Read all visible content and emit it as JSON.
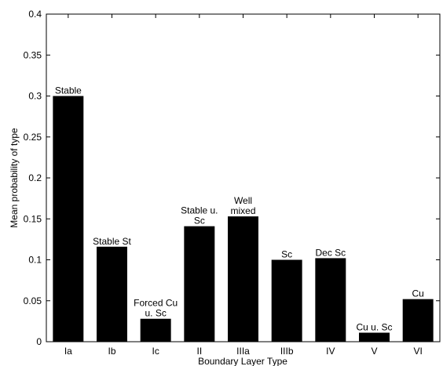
{
  "chart_data": {
    "type": "bar",
    "title": "",
    "xlabel": "Boundary Layer Type",
    "ylabel": "Mean probability of type",
    "ylim": [
      0,
      0.4
    ],
    "yticks": [
      0,
      0.05,
      0.1,
      0.15,
      0.2,
      0.25,
      0.3,
      0.35,
      0.4
    ],
    "ytick_labels": [
      "0",
      "0.05",
      "0.1",
      "0.15",
      "0.2",
      "0.25",
      "0.3",
      "0.35",
      "0.4"
    ],
    "categories": [
      "Ia",
      "Ib",
      "Ic",
      "II",
      "IIIa",
      "IIIb",
      "IV",
      "V",
      "VI"
    ],
    "values": [
      0.3,
      0.116,
      0.028,
      0.141,
      0.153,
      0.1,
      0.102,
      0.011,
      0.052
    ],
    "bar_labels": [
      [
        "Stable"
      ],
      [
        "Stable St"
      ],
      [
        "Forced Cu",
        "u. Sc"
      ],
      [
        "Stable u.",
        "Sc"
      ],
      [
        "Well",
        "mixed"
      ],
      [
        "Sc"
      ],
      [
        "Dec Sc"
      ],
      [
        "Cu u. Sc"
      ],
      [
        "Cu"
      ]
    ],
    "bar_color": "#000000",
    "grid": false,
    "legend": "none"
  }
}
